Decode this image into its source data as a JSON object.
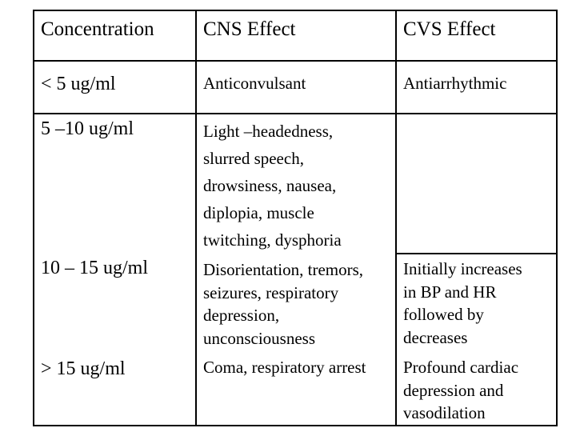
{
  "table": {
    "headers": [
      "Concentration",
      "CNS Effect",
      "CVS Effect"
    ],
    "rows": [
      {
        "concentration": "< 5 ug/ml",
        "cns": "Anticonvulsant",
        "cvs": "Antiarrhythmic"
      },
      {
        "concentration": "5 –10 ug/ml",
        "cns": "Light –headedness,\nslurred speech,\ndrowsiness, nausea,\ndiplopia, muscle\ntwitching, dysphoria",
        "cvs": ""
      },
      {
        "concentration": "10 – 15 ug/ml",
        "cns": "Disorientation, tremors,\nseizures, respiratory\ndepression,\nunconsciousness",
        "cvs": "Initially increases\nin BP and HR\nfollowed by\ndecreases"
      },
      {
        "concentration": "> 15 ug/ml",
        "cns": "Coma, respiratory arrest",
        "cvs": "Profound cardiac\ndepression and\nvasodilation"
      }
    ]
  }
}
